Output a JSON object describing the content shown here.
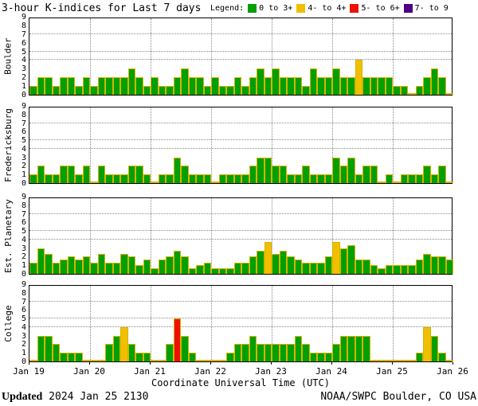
{
  "title": "3-hour K-indices for Last 7 days",
  "legend": {
    "label": "Legend:",
    "items": [
      {
        "label": "0 to 3+",
        "color": "#00A000"
      },
      {
        "label": "4- to 4+",
        "color": "#F0C000"
      },
      {
        "label": "5- to 6+",
        "color": "#EE1100"
      },
      {
        "label": "7- to 9",
        "color": "#4B0082"
      }
    ]
  },
  "chart_data": {
    "type": "bar",
    "xlabel": "Coordinate Universal Time (UTC)",
    "x_ticks": [
      "Jan 19",
      "Jan 20",
      "Jan 21",
      "Jan 22",
      "Jan 23",
      "Jan 24",
      "Jan 25",
      "Jan 26"
    ],
    "y_ticks": [
      0,
      1,
      2,
      3,
      4,
      5,
      6,
      7,
      8,
      9
    ],
    "ylim": [
      0,
      9
    ],
    "dotted_levels": [
      4,
      5,
      7
    ],
    "bars_per_day": 8,
    "days": 7,
    "color_rules": {
      "green_max": 3.33,
      "yellow_max": 4.33,
      "red_max": 6.33,
      "purple_max": 9
    },
    "colors": {
      "green": "#00A000",
      "yellow": "#F0C000",
      "red": "#EE1100",
      "purple": "#4B0082",
      "outline": "#D9B200"
    },
    "panels": [
      {
        "station": "Boulder",
        "values": [
          1,
          2,
          2,
          1,
          2,
          2,
          1,
          2,
          1,
          2,
          2,
          2,
          2,
          3,
          2,
          1,
          2,
          1,
          1,
          2,
          3,
          2,
          2,
          1,
          2,
          1,
          1,
          2,
          1,
          2,
          3,
          2,
          3,
          2,
          2,
          2,
          1,
          3,
          2,
          2,
          3,
          2,
          2,
          4,
          2,
          2,
          2,
          2,
          1,
          1,
          0,
          1,
          2,
          3,
          2,
          0
        ]
      },
      {
        "station": "Fredericksburg",
        "values": [
          1,
          2,
          1,
          1,
          2,
          2,
          1,
          2,
          0,
          2,
          1,
          1,
          1,
          2,
          2,
          1,
          0,
          1,
          1,
          3,
          2,
          1,
          1,
          1,
          0,
          1,
          1,
          1,
          1,
          2,
          3,
          3,
          2,
          2,
          1,
          1,
          2,
          1,
          1,
          1,
          3,
          2,
          3,
          1,
          2,
          2,
          0,
          1,
          0,
          1,
          1,
          1,
          2,
          1,
          2,
          0
        ]
      },
      {
        "station": "Est. Planetary",
        "values": [
          1.33,
          3,
          2.33,
          1.33,
          1.67,
          2,
          1.67,
          2,
          1.33,
          2.33,
          1.33,
          1.33,
          2.33,
          2,
          1,
          1.67,
          0.67,
          1.67,
          2,
          2.67,
          2,
          0.67,
          1,
          1.33,
          0.67,
          0.67,
          0.67,
          1.33,
          1.33,
          2,
          2.67,
          3.67,
          2.33,
          2.67,
          2,
          1.67,
          1.33,
          1.33,
          1.33,
          2,
          3.67,
          3,
          3.33,
          1.67,
          1.67,
          1,
          0.67,
          1,
          1,
          1,
          1,
          1.67,
          2.33,
          2,
          2,
          1.67
        ]
      },
      {
        "station": "College",
        "values": [
          0,
          3,
          3,
          2,
          1,
          1,
          1,
          0,
          0,
          0,
          2,
          3,
          4,
          2,
          1,
          1,
          0,
          0,
          2,
          5,
          3,
          1,
          0,
          0,
          0,
          0,
          1,
          2,
          2,
          3,
          2,
          2,
          2,
          2,
          2,
          3,
          2,
          1,
          1,
          1,
          2,
          3,
          3,
          3,
          3,
          0,
          0,
          0,
          0,
          0,
          0,
          1,
          4,
          3,
          1,
          0
        ]
      }
    ],
    "layout_note": "4 stacked panels sharing one time axis"
  },
  "footer": {
    "updated_label": "Updated",
    "updated_value": " 2024 Jan 25 2130",
    "credit": "NOAA/SWPC Boulder, CO USA"
  }
}
